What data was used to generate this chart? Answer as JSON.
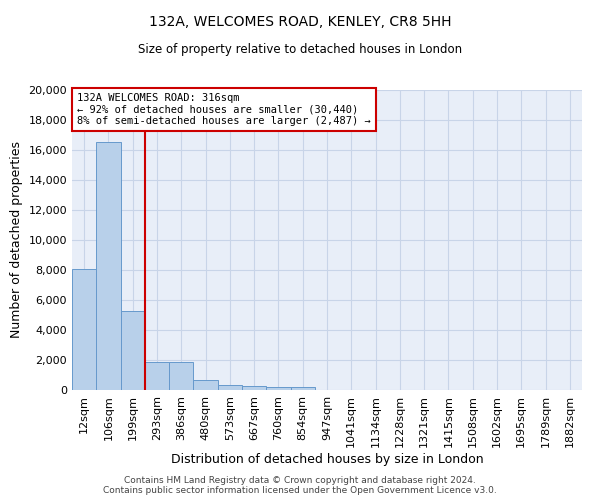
{
  "title": "132A, WELCOMES ROAD, KENLEY, CR8 5HH",
  "subtitle": "Size of property relative to detached houses in London",
  "xlabel": "Distribution of detached houses by size in London",
  "ylabel": "Number of detached properties",
  "footer_line1": "Contains HM Land Registry data © Crown copyright and database right 2024.",
  "footer_line2": "Contains public sector information licensed under the Open Government Licence v3.0.",
  "categories": [
    "12sqm",
    "106sqm",
    "199sqm",
    "293sqm",
    "386sqm",
    "480sqm",
    "573sqm",
    "667sqm",
    "760sqm",
    "854sqm",
    "947sqm",
    "1041sqm",
    "1134sqm",
    "1228sqm",
    "1321sqm",
    "1415sqm",
    "1508sqm",
    "1602sqm",
    "1695sqm",
    "1789sqm",
    "1882sqm"
  ],
  "values": [
    8100,
    16500,
    5300,
    1850,
    1850,
    650,
    350,
    280,
    230,
    200,
    0,
    0,
    0,
    0,
    0,
    0,
    0,
    0,
    0,
    0,
    0
  ],
  "bar_color": "#b8d0ea",
  "bar_edge_color": "#6699cc",
  "vline_color": "#cc0000",
  "annotation_text": "132A WELCOMES ROAD: 316sqm\n← 92% of detached houses are smaller (30,440)\n8% of semi-detached houses are larger (2,487) →",
  "annotation_box_color": "#cc0000",
  "ylim": [
    0,
    20000
  ],
  "yticks": [
    0,
    2000,
    4000,
    6000,
    8000,
    10000,
    12000,
    14000,
    16000,
    18000,
    20000
  ],
  "grid_color": "#c8d4e8",
  "background_color": "#e8eef8",
  "fig_width": 6.0,
  "fig_height": 5.0,
  "dpi": 100
}
